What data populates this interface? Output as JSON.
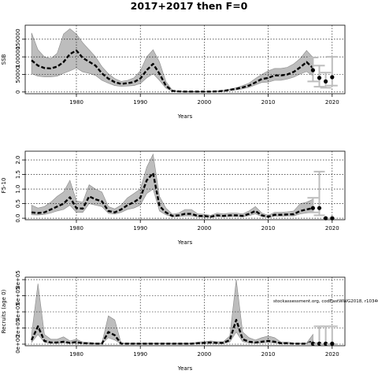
{
  "title": "2017+2017 then F=0",
  "chart_data": [
    {
      "type": "line",
      "ylabel": "SSB",
      "xlabel": "Years",
      "xlim": [
        1972,
        2022
      ],
      "ylim": [
        -5000,
        190000
      ],
      "xticks": [
        1980,
        1990,
        2000,
        2010,
        2020
      ],
      "yticks": [
        0,
        50000,
        100000,
        150000
      ],
      "ytick_labels": [
        "0",
        "50000",
        "100000",
        "150000"
      ],
      "grid": true,
      "years": [
        1973,
        1974,
        1975,
        1976,
        1977,
        1978,
        1979,
        1980,
        1981,
        1982,
        1983,
        1984,
        1985,
        1986,
        1987,
        1988,
        1989,
        1990,
        1991,
        1992,
        1993,
        1994,
        1995,
        1996,
        1997,
        1998,
        1999,
        2000,
        2001,
        2002,
        2003,
        2004,
        2005,
        2006,
        2007,
        2008,
        2009,
        2010,
        2011,
        2012,
        2013,
        2014,
        2015,
        2016,
        2017
      ],
      "estimate": [
        90000,
        75000,
        68000,
        67000,
        72000,
        85000,
        108000,
        118000,
        97000,
        86000,
        75000,
        53000,
        38000,
        28000,
        23000,
        25000,
        28000,
        38000,
        62000,
        80000,
        52000,
        18000,
        3000,
        1500,
        1000,
        1000,
        1000,
        1000,
        1000,
        1500,
        3000,
        6000,
        9000,
        13000,
        18000,
        27000,
        37000,
        40000,
        47000,
        47000,
        50000,
        57000,
        70000,
        85000,
        68000
      ],
      "lower": [
        52000,
        45000,
        43000,
        43000,
        45000,
        53000,
        60000,
        68000,
        57000,
        53000,
        47000,
        33000,
        25000,
        18000,
        16000,
        17000,
        18000,
        24000,
        40000,
        52000,
        33000,
        11000,
        2000,
        1000,
        500,
        500,
        500,
        500,
        500,
        1000,
        2000,
        4000,
        6000,
        9000,
        13000,
        20000,
        27000,
        28000,
        33000,
        33000,
        37000,
        42000,
        51000,
        58000,
        46000
      ],
      "upper": [
        168000,
        120000,
        100000,
        95000,
        110000,
        165000,
        180000,
        165000,
        140000,
        120000,
        100000,
        72000,
        52000,
        38000,
        30000,
        33000,
        40000,
        60000,
        100000,
        120000,
        85000,
        30000,
        5000,
        2500,
        1500,
        1500,
        1500,
        1500,
        1500,
        2500,
        5000,
        8000,
        12000,
        18000,
        25000,
        38000,
        50000,
        60000,
        67000,
        67000,
        70000,
        80000,
        95000,
        118000,
        98000
      ],
      "forecast": [
        {
          "year": 2017,
          "value": 62000,
          "lower": 30000,
          "upper": 98000
        },
        {
          "year": 2018,
          "value": 40000,
          "lower": 15000,
          "upper": 75000
        },
        {
          "year": 2019,
          "value": 30000,
          "lower": 12000,
          "upper": 55000
        },
        {
          "year": 2020,
          "value": 42000,
          "lower": 18000,
          "upper": 100000
        }
      ]
    },
    {
      "type": "line",
      "ylabel": "F5-10",
      "xlabel": "Years",
      "xlim": [
        1972,
        2022
      ],
      "ylim": [
        -0.05,
        2.3
      ],
      "xticks": [
        1980,
        1990,
        2000,
        2010,
        2020
      ],
      "yticks": [
        0,
        0.5,
        1.0,
        1.5,
        2.0
      ],
      "ytick_labels": [
        "0.0",
        "0.5",
        "1.0",
        "1.5",
        "2.0"
      ],
      "grid": true,
      "years": [
        1973,
        1974,
        1975,
        1976,
        1977,
        1978,
        1979,
        1980,
        1981,
        1982,
        1983,
        1984,
        1985,
        1986,
        1987,
        1988,
        1989,
        1990,
        1991,
        1992,
        1993,
        1994,
        1995,
        1996,
        1997,
        1998,
        1999,
        2000,
        2001,
        2002,
        2003,
        2004,
        2005,
        2006,
        2007,
        2008,
        2009,
        2010,
        2011,
        2012,
        2013,
        2014,
        2015,
        2016,
        2017
      ],
      "estimate": [
        0.2,
        0.18,
        0.2,
        0.3,
        0.4,
        0.5,
        0.72,
        0.35,
        0.33,
        0.75,
        0.65,
        0.58,
        0.25,
        0.2,
        0.3,
        0.45,
        0.55,
        0.7,
        1.3,
        1.55,
        0.42,
        0.2,
        0.08,
        0.1,
        0.15,
        0.15,
        0.08,
        0.08,
        0.05,
        0.1,
        0.08,
        0.1,
        0.1,
        0.08,
        0.15,
        0.25,
        0.1,
        0.05,
        0.12,
        0.12,
        0.13,
        0.14,
        0.25,
        0.3,
        0.35
      ],
      "lower": [
        0.12,
        0.11,
        0.13,
        0.18,
        0.25,
        0.3,
        0.45,
        0.2,
        0.2,
        0.5,
        0.45,
        0.4,
        0.17,
        0.14,
        0.2,
        0.3,
        0.35,
        0.45,
        0.85,
        1.0,
        0.25,
        0.12,
        0.05,
        0.06,
        0.08,
        0.08,
        0.04,
        0.04,
        0.03,
        0.06,
        0.05,
        0.06,
        0.06,
        0.05,
        0.09,
        0.15,
        0.06,
        0.03,
        0.07,
        0.07,
        0.08,
        0.08,
        0.15,
        0.18,
        0.2
      ],
      "upper": [
        0.45,
        0.35,
        0.4,
        0.55,
        0.75,
        0.9,
        1.3,
        0.6,
        0.55,
        1.15,
        1.0,
        0.9,
        0.4,
        0.32,
        0.45,
        0.7,
        0.85,
        1.0,
        1.75,
        2.2,
        0.75,
        0.35,
        0.14,
        0.18,
        0.3,
        0.3,
        0.15,
        0.14,
        0.1,
        0.18,
        0.15,
        0.18,
        0.18,
        0.15,
        0.25,
        0.4,
        0.18,
        0.1,
        0.2,
        0.2,
        0.22,
        0.25,
        0.5,
        0.55,
        0.65
      ],
      "forecast": [
        {
          "year": 2017,
          "value": 0.35,
          "lower": 0.2,
          "upper": 0.7
        },
        {
          "year": 2018,
          "value": 0.35,
          "lower": 0.1,
          "upper": 1.6
        },
        {
          "year": 2019,
          "value": 0.0,
          "lower": 0.0,
          "upper": 0.0
        },
        {
          "year": 2020,
          "value": 0.0,
          "lower": 0.0,
          "upper": 0.0
        }
      ]
    },
    {
      "type": "line",
      "ylabel": "Recruits (age 0)",
      "xlabel": "Years",
      "xlim": [
        1972,
        2022
      ],
      "ylim": [
        -20000,
        830000
      ],
      "xticks": [
        1980,
        1990,
        2000,
        2010,
        2020
      ],
      "yticks": [
        0,
        200000,
        400000,
        600000,
        800000
      ],
      "ytick_labels": [
        "0e+00",
        "2e+05",
        "4e+05",
        "6e+05",
        "8e+05"
      ],
      "grid": true,
      "annotation": "stockassessment.org, codEastWWG2018, r10340",
      "years": [
        1973,
        1974,
        1975,
        1976,
        1977,
        1978,
        1979,
        1980,
        1981,
        1982,
        1983,
        1984,
        1985,
        1986,
        1987,
        1988,
        1989,
        1990,
        1991,
        1992,
        1993,
        1994,
        1995,
        1996,
        1997,
        1998,
        1999,
        2000,
        2001,
        2002,
        2003,
        2004,
        2005,
        2006,
        2007,
        2008,
        2009,
        2010,
        2011,
        2012,
        2013,
        2014,
        2015,
        2016,
        2017
      ],
      "estimate": [
        50000,
        220000,
        40000,
        20000,
        20000,
        30000,
        15000,
        25000,
        10000,
        8000,
        5000,
        5000,
        150000,
        110000,
        5000,
        5000,
        5000,
        5000,
        5000,
        5000,
        5000,
        5000,
        5000,
        5000,
        5000,
        5000,
        10000,
        15000,
        20000,
        15000,
        15000,
        50000,
        300000,
        60000,
        30000,
        20000,
        30000,
        40000,
        30000,
        10000,
        10000,
        5000,
        5000,
        5000,
        40000
      ],
      "lower": [
        20000,
        120000,
        20000,
        10000,
        10000,
        15000,
        8000,
        12000,
        5000,
        4000,
        2000,
        2000,
        80000,
        50000,
        2000,
        2000,
        2000,
        2000,
        2000,
        2000,
        2000,
        2000,
        2000,
        2000,
        2000,
        2000,
        5000,
        8000,
        10000,
        8000,
        8000,
        25000,
        150000,
        30000,
        15000,
        10000,
        15000,
        20000,
        15000,
        5000,
        5000,
        2000,
        2000,
        2000,
        15000
      ],
      "upper": [
        120000,
        750000,
        120000,
        60000,
        60000,
        90000,
        40000,
        60000,
        25000,
        20000,
        12000,
        12000,
        350000,
        300000,
        12000,
        12000,
        12000,
        12000,
        12000,
        12000,
        12000,
        12000,
        12000,
        12000,
        12000,
        12000,
        25000,
        30000,
        40000,
        30000,
        30000,
        100000,
        800000,
        150000,
        80000,
        50000,
        80000,
        100000,
        80000,
        25000,
        25000,
        12000,
        12000,
        12000,
        120000
      ],
      "forecast": [
        {
          "year": 2017,
          "value": 5000,
          "lower": 2000,
          "upper": 12000
        },
        {
          "year": 2018,
          "value": 5000,
          "lower": 0,
          "upper": 220000
        },
        {
          "year": 2019,
          "value": 5000,
          "lower": 0,
          "upper": 220000
        },
        {
          "year": 2020,
          "value": 5000,
          "lower": 0,
          "upper": 220000
        }
      ]
    }
  ]
}
